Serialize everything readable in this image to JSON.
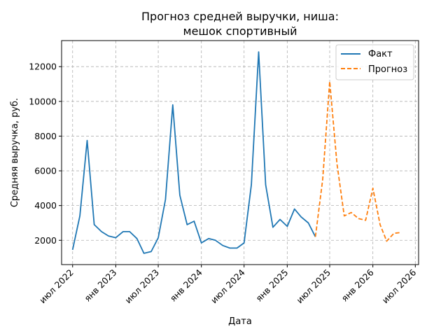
{
  "chart_data": {
    "type": "line",
    "title_lines": [
      "Прогноз средней выручки, ниша:",
      "мешок спортивный"
    ],
    "xlabel": "Дата",
    "ylabel": "Средняя выручка, руб.",
    "x_range": [
      "2022-05-15",
      "2026-07-15"
    ],
    "ylim": [
      600,
      13500
    ],
    "y_ticks": [
      2000,
      4000,
      6000,
      8000,
      10000,
      12000
    ],
    "x_ticks": [
      {
        "date": "2022-07-01",
        "label": "июл 2022"
      },
      {
        "date": "2023-01-01",
        "label": "янв 2023"
      },
      {
        "date": "2023-07-01",
        "label": "июл 2023"
      },
      {
        "date": "2024-01-01",
        "label": "янв 2024"
      },
      {
        "date": "2024-07-01",
        "label": "июл 2024"
      },
      {
        "date": "2025-01-01",
        "label": "янв 2025"
      },
      {
        "date": "2025-07-01",
        "label": "июл 2025"
      },
      {
        "date": "2026-01-01",
        "label": "янв 2026"
      },
      {
        "date": "2026-07-01",
        "label": "июл 2026"
      }
    ],
    "grid": true,
    "legend_position": "top-right",
    "series": [
      {
        "name": "Факт",
        "color": "#1f77b4",
        "style": "solid",
        "points": [
          [
            "2022-07-01",
            1450
          ],
          [
            "2022-08-01",
            3400
          ],
          [
            "2022-09-01",
            7750
          ],
          [
            "2022-10-01",
            2900
          ],
          [
            "2022-11-01",
            2500
          ],
          [
            "2022-12-01",
            2250
          ],
          [
            "2023-01-01",
            2150
          ],
          [
            "2023-02-01",
            2500
          ],
          [
            "2023-03-01",
            2500
          ],
          [
            "2023-04-01",
            2100
          ],
          [
            "2023-05-01",
            1250
          ],
          [
            "2023-06-01",
            1350
          ],
          [
            "2023-07-01",
            2150
          ],
          [
            "2023-08-01",
            4350
          ],
          [
            "2023-09-01",
            9800
          ],
          [
            "2023-10-01",
            4600
          ],
          [
            "2023-11-01",
            2900
          ],
          [
            "2023-12-01",
            3100
          ],
          [
            "2024-01-01",
            1850
          ],
          [
            "2024-02-01",
            2100
          ],
          [
            "2024-03-01",
            2000
          ],
          [
            "2024-04-01",
            1700
          ],
          [
            "2024-05-01",
            1550
          ],
          [
            "2024-06-01",
            1550
          ],
          [
            "2024-07-01",
            1850
          ],
          [
            "2024-08-01",
            5200
          ],
          [
            "2024-09-01",
            12850
          ],
          [
            "2024-10-01",
            5200
          ],
          [
            "2024-11-01",
            2750
          ],
          [
            "2024-12-01",
            3200
          ],
          [
            "2025-01-01",
            2800
          ],
          [
            "2025-02-01",
            3800
          ],
          [
            "2025-03-01",
            3350
          ],
          [
            "2025-04-01",
            3000
          ],
          [
            "2025-05-01",
            2200
          ]
        ]
      },
      {
        "name": "Прогноз",
        "color": "#ff7f0e",
        "style": "dashed",
        "points": [
          [
            "2025-05-01",
            2200
          ],
          [
            "2025-06-01",
            5500
          ],
          [
            "2025-07-01",
            11150
          ],
          [
            "2025-08-01",
            6400
          ],
          [
            "2025-09-01",
            3400
          ],
          [
            "2025-10-01",
            3600
          ],
          [
            "2025-11-01",
            3250
          ],
          [
            "2025-12-01",
            3150
          ],
          [
            "2026-01-01",
            5000
          ],
          [
            "2026-02-01",
            2900
          ],
          [
            "2026-03-01",
            1950
          ],
          [
            "2026-04-01",
            2400
          ],
          [
            "2026-05-01",
            2450
          ]
        ]
      }
    ]
  }
}
